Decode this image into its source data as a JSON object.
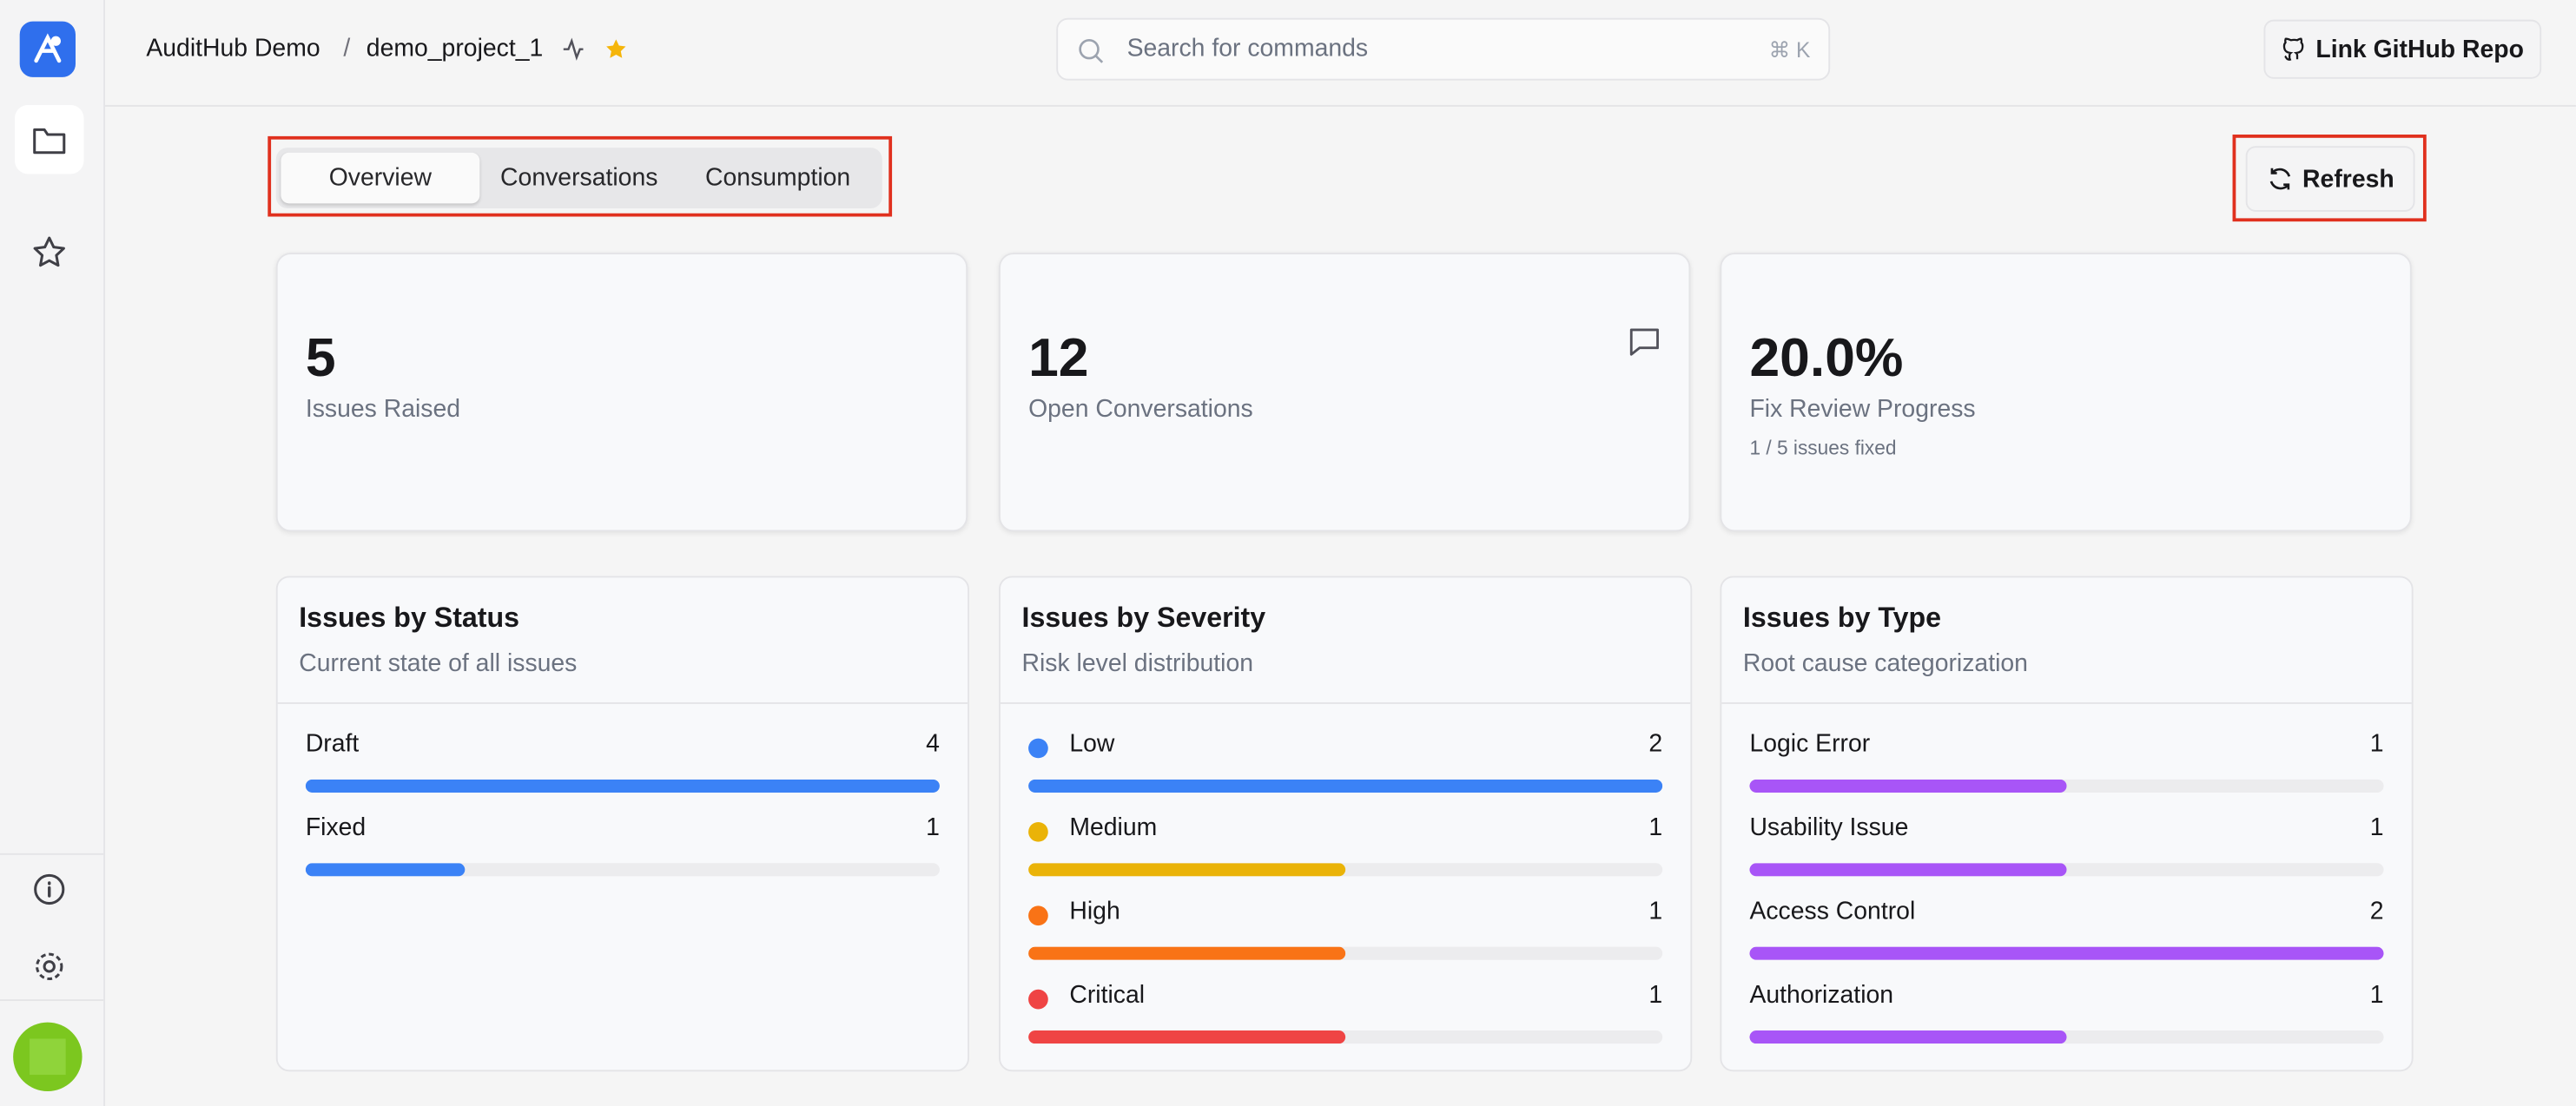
{
  "breadcrumb": {
    "org": "AuditHub Demo",
    "separator": "/",
    "project": "demo_project_1"
  },
  "search": {
    "placeholder": "Search for commands",
    "shortcut": "⌘ K"
  },
  "github_button": "Link GitHub Repo",
  "tabs": [
    {
      "label": "Overview",
      "active": true
    },
    {
      "label": "Conversations",
      "active": false
    },
    {
      "label": "Consumption",
      "active": false
    }
  ],
  "refresh_button": "Refresh",
  "stats": [
    {
      "value": "5",
      "label": "Issues Raised"
    },
    {
      "value": "12",
      "label": "Open Conversations"
    },
    {
      "value": "20.0%",
      "label": "Fix Review Progress",
      "note": "1 / 5 issues fixed"
    }
  ],
  "panels": [
    {
      "title": "Issues by Status",
      "subtitle": "Current state of all issues",
      "bar_color": "#3b82f6",
      "items": [
        {
          "label": "Draft",
          "count": 4
        },
        {
          "label": "Fixed",
          "count": 1
        }
      ]
    },
    {
      "title": "Issues by Severity",
      "subtitle": "Risk level distribution",
      "items": [
        {
          "label": "Low",
          "count": 2,
          "color": "#3b82f6"
        },
        {
          "label": "Medium",
          "count": 1,
          "color": "#eab308"
        },
        {
          "label": "High",
          "count": 1,
          "color": "#f97316"
        },
        {
          "label": "Critical",
          "count": 1,
          "color": "#ef4444"
        }
      ]
    },
    {
      "title": "Issues by Type",
      "subtitle": "Root cause categorization",
      "bar_color": "#a855f7",
      "items": [
        {
          "label": "Logic Error",
          "count": 1
        },
        {
          "label": "Usability Issue",
          "count": 1
        },
        {
          "label": "Access Control",
          "count": 2
        },
        {
          "label": "Authorization",
          "count": 1
        }
      ]
    }
  ]
}
